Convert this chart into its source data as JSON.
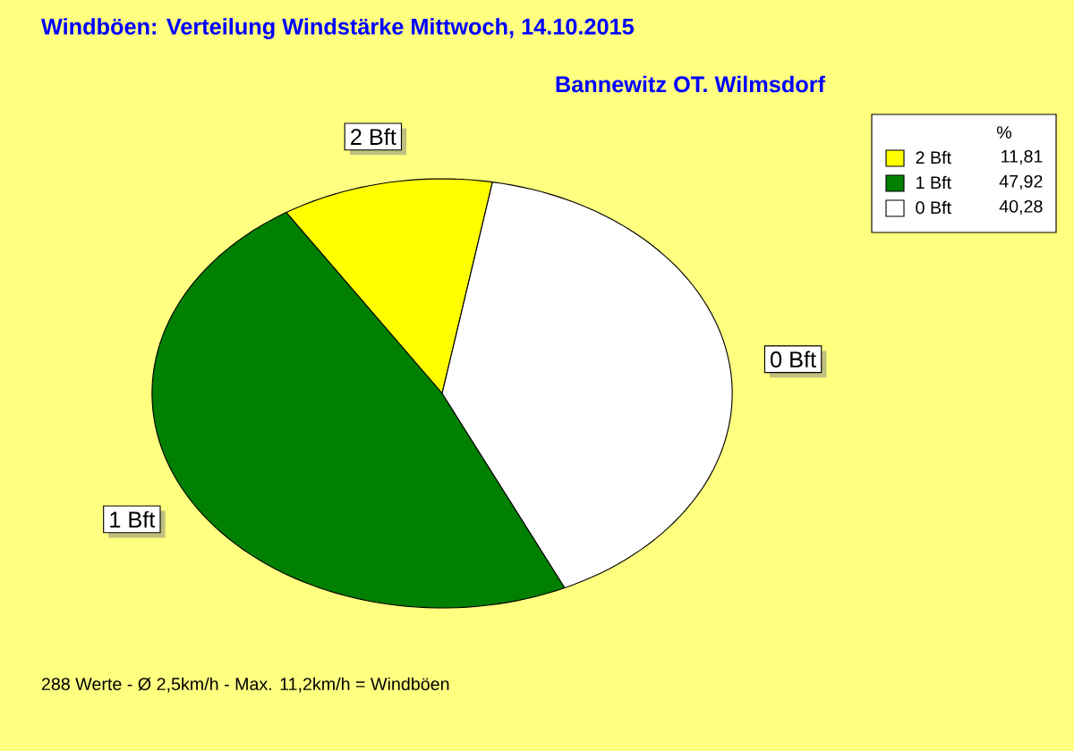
{
  "chart_data": {
    "type": "pie",
    "title": "Windböen: Verteilung Windstärke  Mittwoch, 14.10.2015",
    "subtitle": "Bannewitz OT. Wilmsdorf",
    "categories": [
      "2 Bft",
      "1 Bft",
      "0 Bft"
    ],
    "values": [
      11.81,
      47.92,
      40.28
    ],
    "value_labels": [
      "11,81",
      "47,92",
      "40,28"
    ],
    "colors": [
      "#ffff00",
      "#008000",
      "#ffffff"
    ],
    "legend": "top right",
    "legend_title": "%",
    "annotations": [
      "288 Werte   -   Ø 2,5km/h  -  Max. 11,2km/h = Windböen"
    ]
  }
}
